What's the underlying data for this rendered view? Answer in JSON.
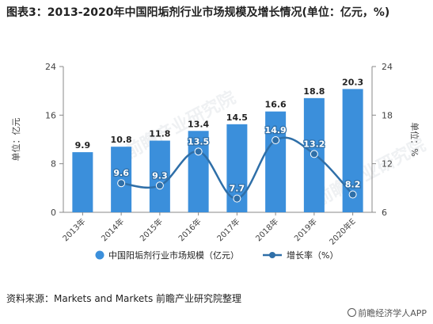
{
  "title": "图表3：2013-2020年中国阳垢剂行业市场规模及增长情况(单位：亿元，%)",
  "source": "资料来源：Markets and Markets 前瞻产业研究院整理",
  "brand": "前瞻经济学人APP",
  "watermark": "前瞻产业研究院",
  "colors": {
    "bar": "#3B8FDB",
    "line": "#2F6FA8",
    "axis": "#888888",
    "grid": "#e6e6e6"
  },
  "chart_data": {
    "type": "bar",
    "categories": [
      "2013年",
      "2014年",
      "2015年",
      "2016年",
      "2017年",
      "2018年",
      "2019年",
      "2020年E"
    ],
    "series": [
      {
        "name": "中国阳垢剂行业市场规模（亿元）",
        "type": "bar",
        "axis": "left",
        "values": [
          9.9,
          10.8,
          11.8,
          13.4,
          14.5,
          16.6,
          18.8,
          20.3
        ]
      },
      {
        "name": "增长率（%）",
        "type": "line",
        "axis": "right",
        "values": [
          null,
          9.6,
          9.3,
          13.5,
          7.7,
          14.9,
          13.2,
          8.2
        ]
      }
    ],
    "ylabel": "单位：亿元",
    "y2label": "单位：%",
    "ylim": [
      0,
      24
    ],
    "y2lim": [
      6,
      24
    ],
    "yticks": [
      0,
      8,
      16,
      24
    ],
    "y2ticks": [
      6,
      12,
      18,
      24
    ],
    "grid": false,
    "legend": "bottom"
  }
}
